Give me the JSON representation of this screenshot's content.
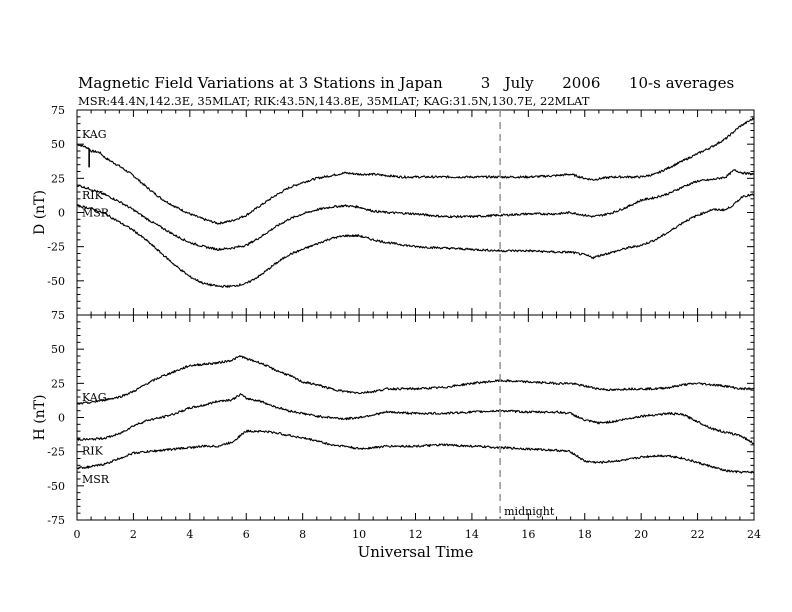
{
  "title": "Magnetic Field Variations at 3 Stations in Japan        3   July      2006      10-s averages",
  "subtitle": "MSR:44.4N,142.3E, 35MLAT;  RIK:43.5N,143.8E, 35MLAT;  KAG:31.5N,130.7E, 22MLAT",
  "chart_data": [
    {
      "type": "line",
      "ylabel": "D (nT)",
      "xlim": [
        0,
        24
      ],
      "ylim": [
        -75,
        75
      ],
      "yticks": [
        75,
        50,
        25,
        0,
        -25,
        -50,
        -75
      ],
      "series": [
        {
          "name": "KAG",
          "x": [
            0,
            0.3,
            0.4,
            0.5,
            0.8,
            1,
            1.5,
            2,
            2.5,
            3,
            3.5,
            4,
            4.5,
            5,
            5.5,
            6,
            6.5,
            7,
            7.5,
            8,
            8.5,
            9,
            9.5,
            10,
            10.5,
            11,
            11.5,
            12,
            13,
            14,
            15,
            16,
            17,
            17.5,
            18,
            18.3,
            18.6,
            19,
            19.5,
            20,
            20.5,
            21,
            21.5,
            22,
            22.5,
            23,
            23.5,
            24
          ],
          "y": [
            50,
            48,
            47,
            45,
            44,
            40,
            34,
            27,
            18,
            10,
            4,
            -1,
            -5,
            -8,
            -6,
            -2,
            5,
            12,
            18,
            22,
            25,
            27,
            29,
            28,
            28,
            27,
            26,
            26,
            26,
            26,
            26,
            26,
            27,
            28,
            25,
            24,
            25,
            26,
            26,
            26,
            28,
            33,
            38,
            43,
            48,
            54,
            63,
            69
          ]
        },
        {
          "name": "RIK",
          "x": [
            0,
            0.5,
            1,
            1.5,
            2,
            2.5,
            3,
            3.5,
            4,
            4.5,
            5,
            5.5,
            6,
            6.5,
            7,
            7.5,
            8,
            8.5,
            9,
            9.5,
            10,
            10.5,
            11,
            12,
            13,
            14,
            15,
            16,
            17,
            17.5,
            18,
            18.3,
            18.6,
            19,
            19.5,
            20,
            20.5,
            21,
            21.5,
            22,
            22.5,
            23,
            23.3,
            23.6,
            24
          ],
          "y": [
            20,
            17,
            13,
            8,
            2,
            -5,
            -11,
            -17,
            -22,
            -25,
            -27,
            -26,
            -24,
            -18,
            -11,
            -5,
            -1,
            2,
            4,
            5,
            4,
            1,
            0,
            -1,
            -3,
            -3,
            -2,
            -1,
            -1,
            0,
            -2,
            -3,
            -2,
            0,
            4,
            9,
            11,
            14,
            19,
            23,
            24,
            26,
            31,
            29,
            28
          ]
        },
        {
          "name": "MSR",
          "x": [
            0,
            0.5,
            1,
            1.5,
            2,
            2.5,
            3,
            3.5,
            4,
            4.5,
            5,
            5.5,
            6,
            6.5,
            7,
            7.5,
            8,
            8.5,
            9,
            9.5,
            10,
            10.5,
            11,
            12,
            13,
            14,
            15,
            16,
            17,
            17.5,
            18,
            18.3,
            18.6,
            19,
            19.5,
            20,
            20.5,
            21,
            21.5,
            22,
            22.5,
            23,
            23.3,
            23.6,
            24
          ],
          "y": [
            5,
            3,
            -1,
            -7,
            -13,
            -21,
            -30,
            -39,
            -47,
            -52,
            -54,
            -54,
            -52,
            -46,
            -38,
            -31,
            -27,
            -23,
            -19,
            -17,
            -17,
            -20,
            -22,
            -25,
            -26,
            -27,
            -28,
            -28,
            -29,
            -29,
            -31,
            -33,
            -31,
            -29,
            -26,
            -24,
            -20,
            -14,
            -7,
            -2,
            2,
            2,
            6,
            12,
            13
          ]
        }
      ]
    },
    {
      "type": "line",
      "ylabel": "H (nT)",
      "xlabel": "Universal Time",
      "xlim": [
        0,
        24
      ],
      "ylim": [
        -75,
        75
      ],
      "yticks": [
        75,
        50,
        25,
        0,
        -25,
        -50,
        -75
      ],
      "xticks": [
        0,
        2,
        4,
        6,
        8,
        10,
        12,
        14,
        16,
        18,
        20,
        22,
        24
      ],
      "annotation": "midnight",
      "annotation_x": 15,
      "series": [
        {
          "name": "KAG",
          "x": [
            0,
            0.5,
            1,
            1.5,
            2,
            2.5,
            3,
            3.5,
            4,
            4.5,
            5,
            5.5,
            5.8,
            6,
            6.5,
            7,
            7.5,
            8,
            8.5,
            9,
            9.5,
            10,
            10.5,
            11,
            12,
            13,
            14,
            15,
            16,
            17,
            17.5,
            18,
            18.5,
            19,
            19.5,
            20,
            20.5,
            21,
            21.5,
            22,
            22.5,
            23,
            23.5,
            24
          ],
          "y": [
            10,
            11,
            13,
            15,
            19,
            25,
            30,
            34,
            38,
            39,
            40,
            42,
            45,
            43,
            40,
            35,
            31,
            26,
            24,
            21,
            19,
            18,
            19,
            21,
            21,
            22,
            25,
            27,
            26,
            25,
            25,
            23,
            21,
            20,
            21,
            21,
            21,
            22,
            24,
            25,
            24,
            23,
            21,
            21
          ]
        },
        {
          "name": "RIK",
          "x": [
            0,
            0.5,
            1,
            1.5,
            2,
            2.5,
            3,
            3.5,
            4,
            4.5,
            5,
            5.5,
            5.8,
            6,
            6.5,
            7,
            7.5,
            8,
            8.5,
            9,
            9.5,
            10,
            10.5,
            11,
            12,
            13,
            14,
            15,
            16,
            17,
            17.5,
            18,
            18.5,
            19,
            19.5,
            20,
            20.5,
            21,
            21.5,
            22,
            22.5,
            23,
            23.5,
            24
          ],
          "y": [
            -16,
            -16,
            -15,
            -12,
            -6,
            -2,
            0,
            3,
            7,
            9,
            12,
            13,
            17,
            14,
            12,
            8,
            5,
            3,
            1,
            0,
            -1,
            0,
            2,
            4,
            3,
            3,
            4,
            5,
            4,
            4,
            3,
            -2,
            -4,
            -3,
            -1,
            1,
            2,
            3,
            2,
            -3,
            -8,
            -11,
            -13,
            -19
          ]
        },
        {
          "name": "MSR",
          "x": [
            0,
            0.5,
            1,
            1.5,
            2,
            2.5,
            3,
            3.5,
            4,
            4.5,
            5,
            5.5,
            5.8,
            6,
            6.5,
            7,
            7.5,
            8,
            8.5,
            9,
            9.5,
            10,
            10.5,
            11,
            12,
            13,
            14,
            15,
            16,
            17,
            17.5,
            18,
            18.5,
            19,
            19.5,
            20,
            20.5,
            21,
            21.5,
            22,
            22.5,
            23,
            23.5,
            24
          ],
          "y": [
            -37,
            -36,
            -34,
            -30,
            -26,
            -25,
            -24,
            -23,
            -22,
            -21,
            -21,
            -18,
            -13,
            -10,
            -10,
            -11,
            -13,
            -15,
            -17,
            -20,
            -21,
            -23,
            -22,
            -21,
            -21,
            -20,
            -21,
            -22,
            -23,
            -24,
            -25,
            -32,
            -33,
            -32,
            -31,
            -29,
            -28,
            -28,
            -30,
            -33,
            -36,
            -39,
            -40,
            -40
          ]
        }
      ]
    }
  ]
}
